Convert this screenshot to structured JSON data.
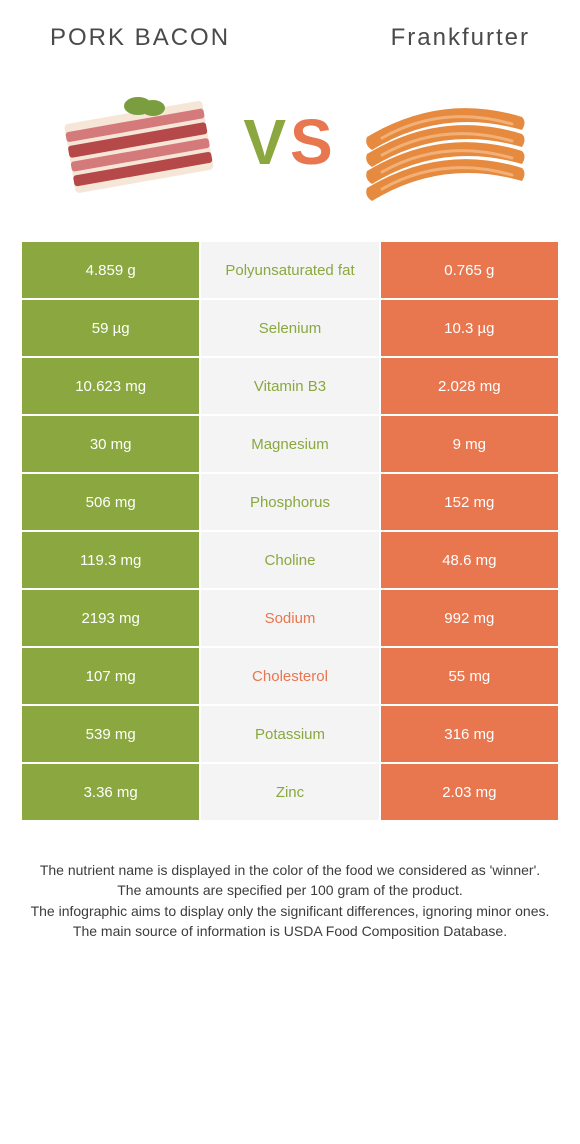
{
  "header": {
    "left_title": "PORK BACON",
    "right_title": "Frankfurter"
  },
  "vs": {
    "v": "V",
    "s": "S"
  },
  "colors": {
    "left_bg": "#8aa83f",
    "right_bg": "#e8764f",
    "mid_bg": "#f4f4f4",
    "left_text": "#8aa83f",
    "right_text": "#e8764f",
    "header_text": "#4a4a4a",
    "notes_text": "#3c3c3c"
  },
  "nutrients": [
    {
      "name": "Polyunsaturated fat",
      "left": "4.859 g",
      "right": "0.765 g",
      "winner": "left"
    },
    {
      "name": "Selenium",
      "left": "59 µg",
      "right": "10.3 µg",
      "winner": "left"
    },
    {
      "name": "Vitamin B3",
      "left": "10.623 mg",
      "right": "2.028 mg",
      "winner": "left"
    },
    {
      "name": "Magnesium",
      "left": "30 mg",
      "right": "9 mg",
      "winner": "left"
    },
    {
      "name": "Phosphorus",
      "left": "506 mg",
      "right": "152 mg",
      "winner": "left"
    },
    {
      "name": "Choline",
      "left": "119.3 mg",
      "right": "48.6 mg",
      "winner": "left"
    },
    {
      "name": "Sodium",
      "left": "2193 mg",
      "right": "992 mg",
      "winner": "right"
    },
    {
      "name": "Cholesterol",
      "left": "107 mg",
      "right": "55 mg",
      "winner": "right"
    },
    {
      "name": "Potassium",
      "left": "539 mg",
      "right": "316 mg",
      "winner": "left"
    },
    {
      "name": "Zinc",
      "left": "3.36 mg",
      "right": "2.03 mg",
      "winner": "left"
    }
  ],
  "notes": {
    "line1": "The nutrient name is displayed in the color of the food we considered as 'winner'.",
    "line2": "The amounts are specified per 100 gram of the product.",
    "line3": "The infographic aims to display only the significant differences, ignoring minor ones.",
    "line4": "The main source of information is USDA Food Composition Database."
  },
  "bacon_illustration": {
    "meat_color": "#d47a7a",
    "fat_color": "#f5e6d8",
    "dark_meat": "#b54848",
    "leaf_color": "#7a9e3f"
  },
  "frankfurter_illustration": {
    "fill": "#e58a3f",
    "highlight": "#f2b077"
  }
}
